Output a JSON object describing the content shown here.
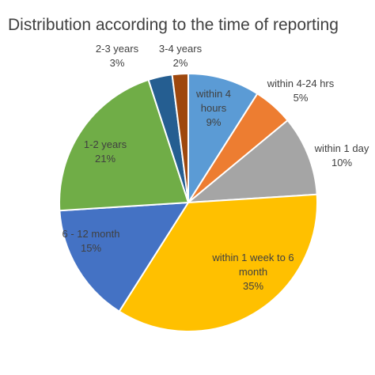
{
  "chart_data": {
    "type": "pie",
    "title": "Distribution according to the time of reporting",
    "slices": [
      {
        "label": "within 4 hours",
        "value": 9,
        "value_label": "9%",
        "color": "#5B9BD5",
        "label_lines": [
          "within 4",
          "hours",
          "9%"
        ],
        "label_color": "#404040"
      },
      {
        "label": "within 4-24 hrs",
        "value": 5,
        "value_label": "5%",
        "color": "#ED7D31",
        "label_lines": [
          "within 4-24 hrs",
          "5%"
        ],
        "label_color": "#404040"
      },
      {
        "label": "within 1 day",
        "value": 10,
        "value_label": "10%",
        "color": "#A5A5A5",
        "label_lines": [
          "within 1 day",
          "10%"
        ],
        "label_color": "#404040"
      },
      {
        "label": "within 1 week to 6 month",
        "value": 35,
        "value_label": "35%",
        "color": "#FFC000",
        "label_lines": [
          "within 1 week to 6",
          "month",
          "35%"
        ],
        "label_color": "#404040"
      },
      {
        "label": "6 - 12 month",
        "value": 15,
        "value_label": "15%",
        "color": "#4472C4",
        "label_lines": [
          "6 - 12 month",
          "15%"
        ],
        "label_color": "#404040"
      },
      {
        "label": "1-2 years",
        "value": 21,
        "value_label": "21%",
        "color": "#70AD47",
        "label_lines": [
          "1-2 years",
          "21%"
        ],
        "label_color": "#404040"
      },
      {
        "label": "2-3 years",
        "value": 3,
        "value_label": "3%",
        "color": "#255E91",
        "label_lines": [
          "2-3 years",
          "3%"
        ],
        "label_color": "#404040"
      },
      {
        "label": "3-4 years",
        "value": 2,
        "value_label": "2%",
        "color": "#9E480E",
        "label_lines": [
          "3-4 years",
          "2%"
        ],
        "label_color": "#404040"
      }
    ]
  }
}
